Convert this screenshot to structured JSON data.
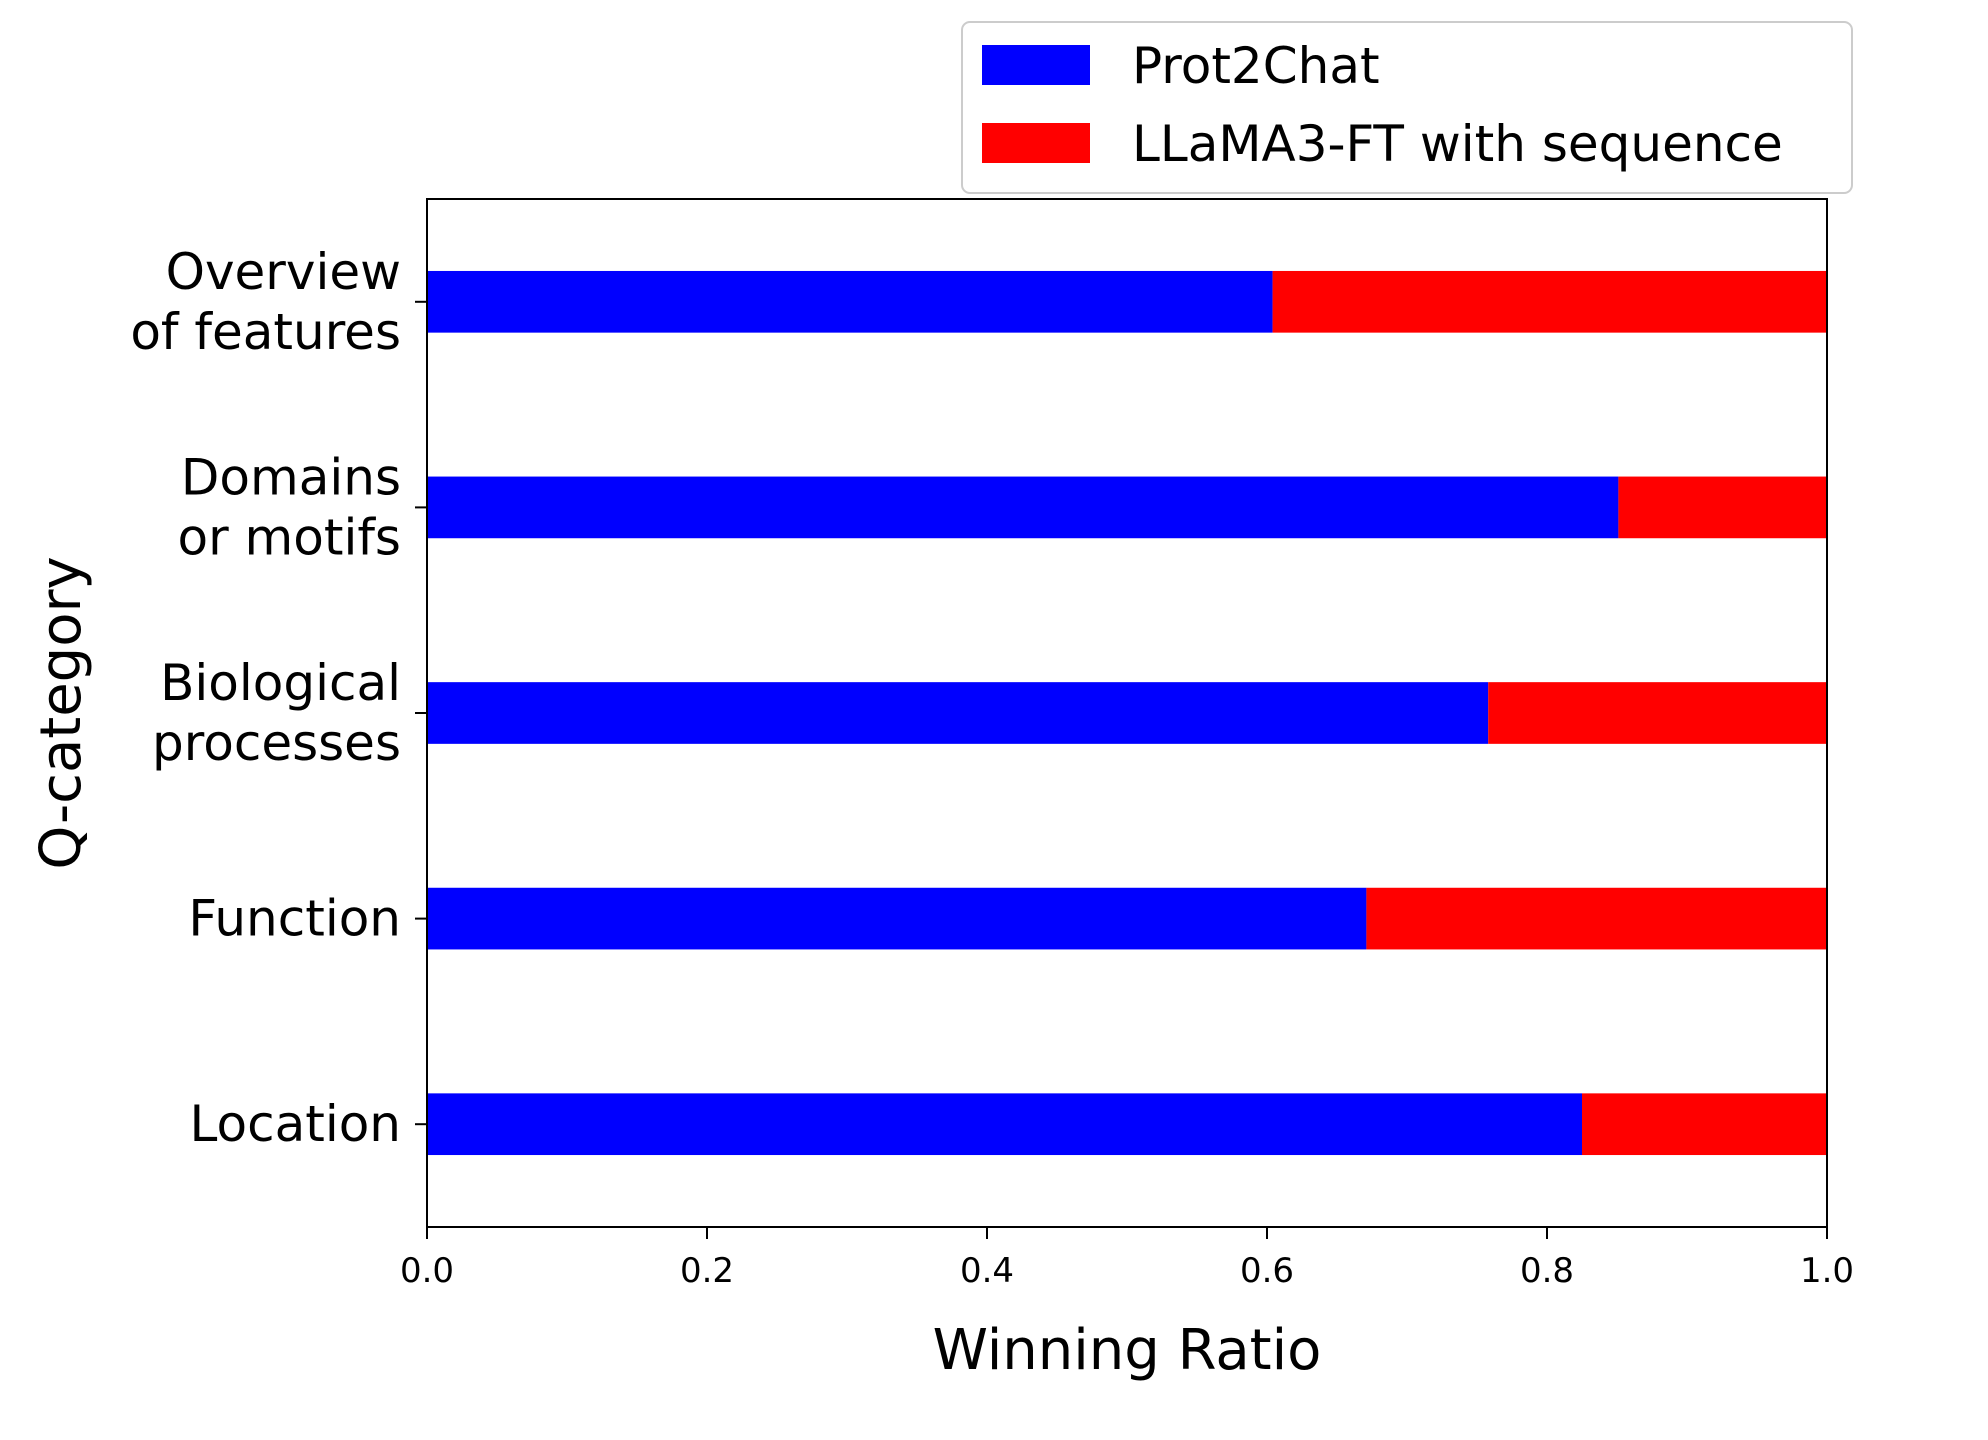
{
  "chart_data": {
    "type": "bar",
    "orientation": "horizontal",
    "stacked": true,
    "title": "",
    "xlabel": "Winning Ratio",
    "ylabel": "Q-category",
    "xlim": [
      0,
      1
    ],
    "xticks": [
      "0.0",
      "0.2",
      "0.4",
      "0.6",
      "0.8",
      "1.0"
    ],
    "grid": false,
    "legend_position": "top-right",
    "categories": [
      [
        "Overview",
        "of features"
      ],
      [
        "Domains",
        "or motifs"
      ],
      [
        "Biological",
        "processes"
      ],
      [
        "Function"
      ],
      [
        "Location"
      ]
    ],
    "series": [
      {
        "name": "Prot2Chat",
        "color": "#0000ff",
        "values": [
          0.604,
          0.851,
          0.758,
          0.671,
          0.825
        ]
      },
      {
        "name": "LLaMA3-FT with sequence",
        "color": "#ff0000",
        "values": [
          0.396,
          0.149,
          0.242,
          0.329,
          0.175
        ]
      }
    ]
  }
}
